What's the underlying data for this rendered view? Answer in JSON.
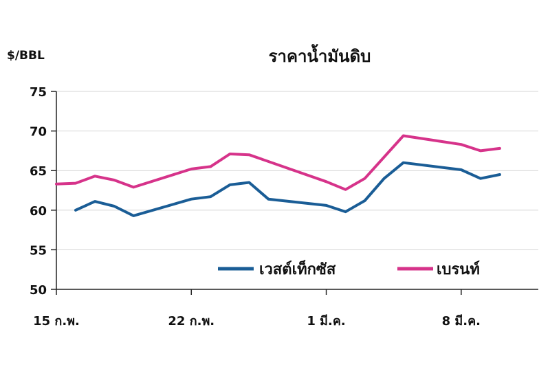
{
  "chart_data": {
    "type": "line",
    "title": "ราคาน้ำมันดิบ",
    "ylabel": "$/BBL",
    "xlabel": "",
    "ylim": [
      50,
      75
    ],
    "yticks": [
      50,
      55,
      60,
      65,
      70,
      75
    ],
    "x_tick_labels": [
      "15 ก.พ.",
      "22 ก.พ.",
      "1 มี.ค.",
      "8 มี.ค."
    ],
    "x_tick_days": [
      15,
      22,
      29,
      36
    ],
    "xlim_days": [
      15,
      40
    ],
    "grid": true,
    "legend_position": "bottom-right",
    "series": [
      {
        "name": "เวสต์เท็กซัส",
        "color": "#1a5d96",
        "x_days": [
          16,
          17,
          18,
          19,
          22,
          23,
          24,
          25,
          26,
          29,
          30,
          31,
          32,
          33,
          36,
          37,
          38
        ],
        "values": [
          60.0,
          61.1,
          60.5,
          59.3,
          61.4,
          61.7,
          63.2,
          63.5,
          61.4,
          60.6,
          59.8,
          61.2,
          64.0,
          66.0,
          65.1,
          64.0,
          64.5
        ]
      },
      {
        "name": "เบรนท์",
        "color": "#d6338a",
        "x_days": [
          15,
          16,
          17,
          18,
          19,
          22,
          23,
          24,
          25,
          29,
          30,
          31,
          33,
          36,
          37,
          38
        ],
        "values": [
          63.3,
          63.4,
          64.3,
          63.8,
          62.9,
          65.2,
          65.5,
          67.1,
          67.0,
          63.6,
          62.6,
          64.0,
          69.4,
          68.3,
          67.5,
          67.8
        ]
      }
    ]
  }
}
